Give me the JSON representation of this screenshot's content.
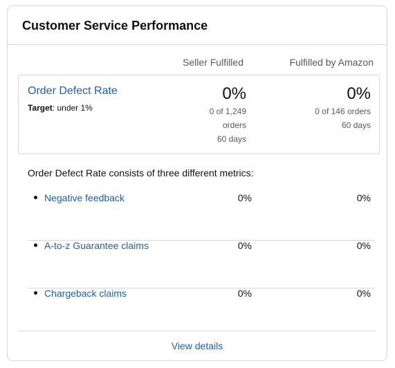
{
  "card": {
    "title": "Customer Service Performance"
  },
  "columns": {
    "seller": "Seller Fulfilled",
    "fba": "Fulfilled by Amazon"
  },
  "odr": {
    "title": "Order Defect Rate",
    "target_label": "Target",
    "target_value": ": under 1%",
    "seller": {
      "percent": "0%",
      "line1": "0 of 1,249",
      "line2": "orders",
      "line3": "60 days"
    },
    "fba": {
      "percent": "0%",
      "line1": "0 of 146 orders",
      "line2": "60 days"
    }
  },
  "description": "Order Defect Rate consists of three different metrics:",
  "metrics": [
    {
      "label": "Negative feedback",
      "seller": "0%",
      "fba": "0%"
    },
    {
      "label": "A-to-z Guarantee claims",
      "seller": "0%",
      "fba": "0%"
    },
    {
      "label": "Chargeback claims",
      "seller": "0%",
      "fba": "0%"
    }
  ],
  "footer": {
    "link": "View details"
  }
}
